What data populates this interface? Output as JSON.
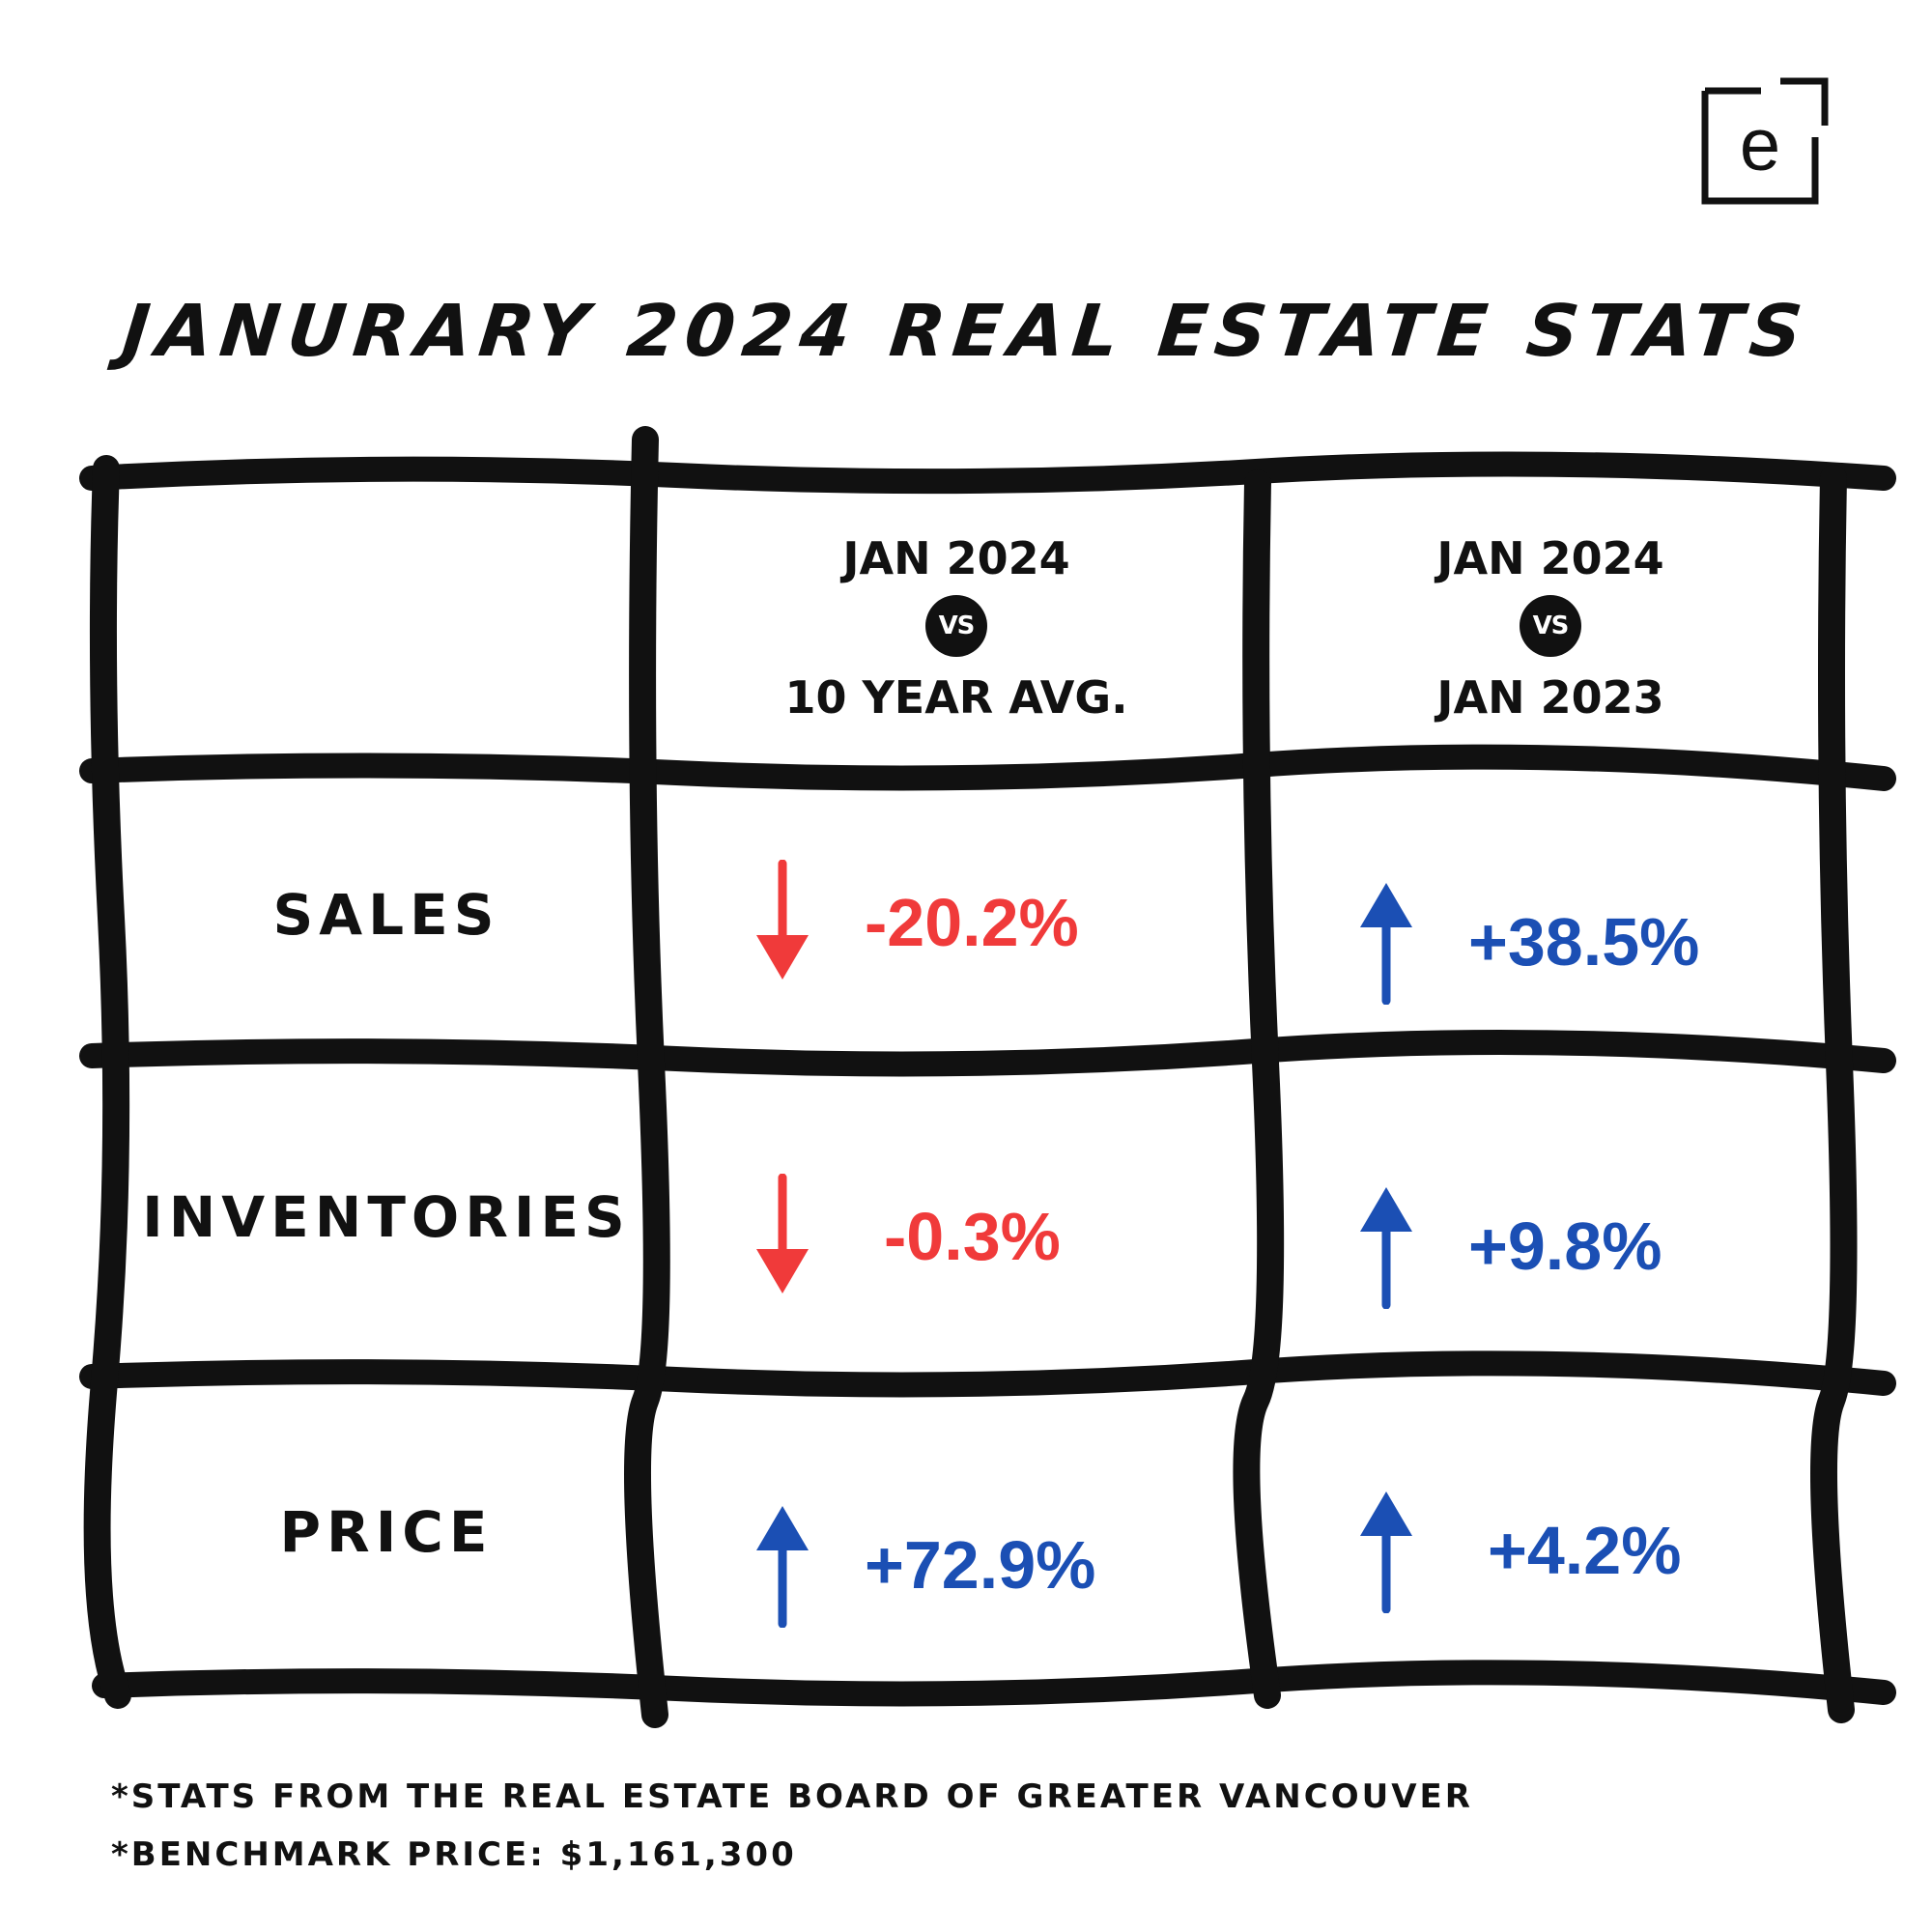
{
  "brand": {
    "logo_letter": "e"
  },
  "title": "Janurary 2024 Real Estate Stats",
  "table": {
    "columns": [
      {
        "line1": "JAN 2024",
        "vs": "VS",
        "line2": "10 YEAR AVG."
      },
      {
        "line1": "JAN 2024",
        "vs": "VS",
        "line2": "JAN 2023"
      }
    ],
    "rows": [
      {
        "label": "SALES",
        "vs_10yr": {
          "value": "-20.2%",
          "direction": "down"
        },
        "vs_2023": {
          "value": "+38.5%",
          "direction": "up"
        }
      },
      {
        "label": "INVENTORIES",
        "vs_10yr": {
          "value": "-0.3%",
          "direction": "down"
        },
        "vs_2023": {
          "value": "+9.8%",
          "direction": "up"
        }
      },
      {
        "label": "PRICE",
        "vs_10yr": {
          "value": "+72.9%",
          "direction": "up"
        },
        "vs_2023": {
          "value": "+4.2%",
          "direction": "up"
        }
      }
    ]
  },
  "colors": {
    "down": "#f03a3a",
    "up": "#1b4fb4",
    "ink": "#111111"
  },
  "footnotes": [
    "*Stats from the Real Estate Board of Greater Vancouver",
    "*Benchmark Price: $1,161,300"
  ]
}
